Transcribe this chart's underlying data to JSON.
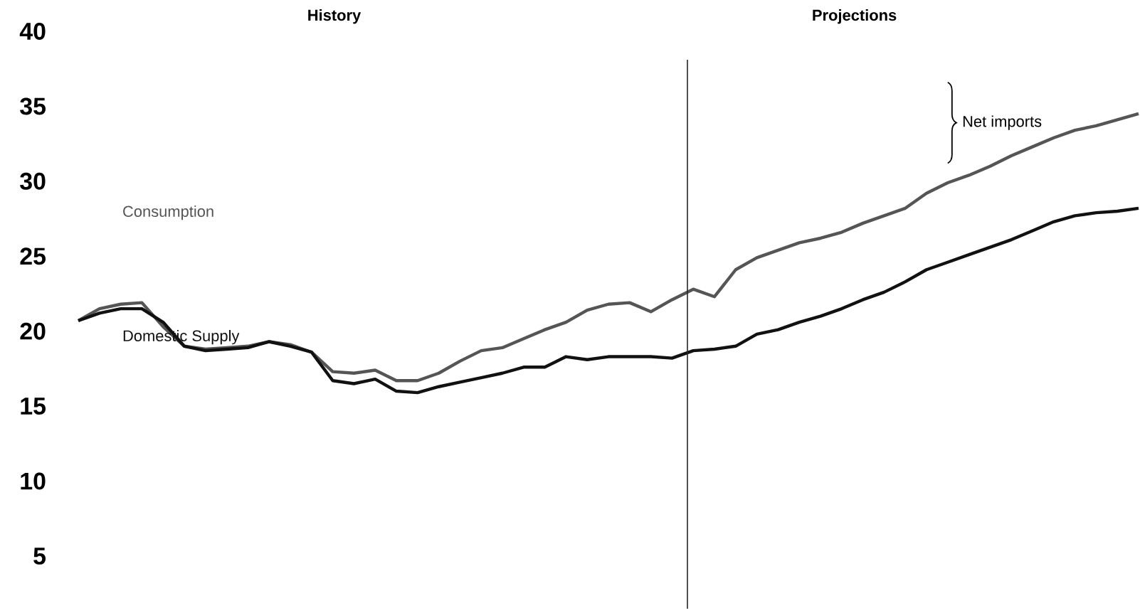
{
  "chart_data": {
    "type": "line",
    "categories": [
      null,
      null,
      null,
      null,
      null,
      null,
      null,
      null,
      null,
      null,
      null,
      null,
      null,
      null,
      null,
      null,
      null,
      null,
      null,
      null,
      null,
      null,
      null,
      null,
      null,
      null,
      null,
      null,
      null,
      null,
      null,
      null,
      null,
      null,
      null,
      null,
      null,
      null,
      null,
      null,
      null,
      null,
      null,
      null,
      null,
      null,
      null,
      null,
      null,
      null,
      null
    ],
    "series": [
      {
        "name": "Consumption",
        "color": "#555555",
        "values": [
          20.7,
          21.5,
          21.8,
          21.9,
          20.3,
          19.0,
          18.8,
          18.9,
          19.0,
          19.3,
          19.1,
          18.6,
          17.3,
          17.2,
          17.4,
          16.7,
          16.7,
          17.2,
          18.0,
          18.7,
          18.9,
          19.5,
          20.1,
          20.6,
          21.4,
          21.8,
          21.9,
          21.3,
          22.1,
          22.8,
          22.3,
          24.1,
          24.9,
          25.4,
          25.9,
          26.2,
          26.6,
          27.2,
          27.7,
          28.2,
          29.2,
          29.9,
          30.4,
          31.0,
          31.7,
          32.3,
          32.9,
          33.4,
          33.7,
          34.1,
          34.5
        ]
      },
      {
        "name": "Domestic Supply",
        "color": "#111111",
        "values": [
          20.7,
          21.2,
          21.5,
          21.5,
          20.6,
          19.0,
          18.7,
          18.8,
          18.9,
          19.3,
          19.0,
          18.6,
          16.7,
          16.5,
          16.8,
          16.0,
          15.9,
          16.3,
          16.6,
          16.9,
          17.2,
          17.6,
          17.6,
          18.3,
          18.1,
          18.3,
          18.3,
          18.3,
          18.2,
          18.7,
          18.8,
          19.0,
          19.8,
          20.1,
          20.6,
          21.0,
          21.5,
          22.1,
          22.6,
          23.3,
          24.1,
          24.6,
          25.1,
          25.6,
          26.1,
          26.7,
          27.3,
          27.7,
          27.9,
          28.0,
          28.2
        ]
      }
    ],
    "ylim": [
      5,
      40
    ],
    "yticks": [
      5,
      10,
      15,
      20,
      25,
      30,
      35,
      40
    ],
    "annotations": [
      "History",
      "Projections",
      "Net imports"
    ]
  }
}
